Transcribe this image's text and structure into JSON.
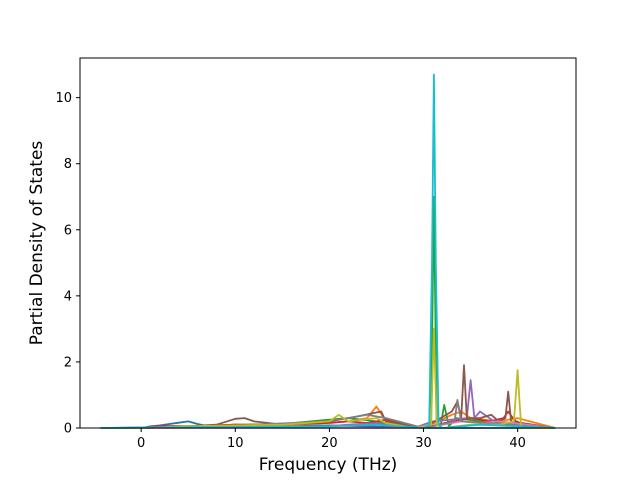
{
  "chart_data": {
    "type": "line",
    "title": "",
    "xlabel": "Frequency (THz)",
    "ylabel": "Partial Density of States",
    "xlim": [
      -6.5,
      46.2
    ],
    "ylim": [
      0,
      11.2
    ],
    "xticks": [
      0,
      10,
      20,
      30,
      40
    ],
    "yticks": [
      0,
      2,
      4,
      6,
      8,
      10
    ],
    "grid": false,
    "legend": "none",
    "series": [
      {
        "color": "#1f77b4",
        "x": [
          -4.3,
          0,
          1,
          2,
          3,
          4,
          5,
          6,
          7,
          8,
          10,
          12,
          15,
          20,
          24,
          30,
          44
        ],
        "y": [
          0,
          0,
          0.05,
          0.08,
          0.12,
          0.16,
          0.2,
          0.12,
          0.06,
          0.05,
          0.08,
          0.1,
          0.06,
          0.08,
          0.05,
          0,
          0
        ]
      },
      {
        "color": "#ff7f0e",
        "x": [
          -4.3,
          0,
          2,
          4,
          6,
          10,
          14,
          18,
          22,
          24,
          25,
          26,
          30,
          33,
          34,
          35,
          38,
          40,
          44
        ],
        "y": [
          0,
          0,
          0.04,
          0.06,
          0.05,
          0.1,
          0.08,
          0.12,
          0.2,
          0.3,
          0.65,
          0.2,
          0,
          0.4,
          0.5,
          0.3,
          0.2,
          0.3,
          0
        ]
      },
      {
        "color": "#2ca02c",
        "x": [
          -4.3,
          0,
          6,
          10,
          15,
          20,
          22,
          25,
          29,
          30.8,
          31.1,
          31.4,
          31.8,
          32.2,
          32.7,
          33.5,
          36,
          39.5,
          40,
          40.5,
          44
        ],
        "y": [
          0,
          0,
          0.05,
          0.1,
          0.12,
          0.25,
          0.3,
          0.2,
          0,
          0.05,
          7.0,
          0.1,
          0.05,
          0.7,
          0.05,
          0.3,
          0.2,
          0.1,
          0.2,
          0.05,
          0
        ]
      },
      {
        "color": "#d62728",
        "x": [
          -4.3,
          0,
          2,
          5,
          8,
          10,
          13,
          16,
          20,
          22,
          24,
          26,
          30,
          33,
          35,
          37,
          38.5,
          39,
          39.5,
          40.5,
          44
        ],
        "y": [
          0,
          0,
          0.06,
          0.05,
          0.08,
          0.1,
          0.08,
          0.12,
          0.15,
          0.2,
          0.15,
          0.25,
          0,
          0.2,
          0.3,
          0.2,
          0.3,
          0.5,
          0.3,
          0,
          0
        ]
      },
      {
        "color": "#9467bd",
        "x": [
          -4.3,
          20,
          22,
          25,
          29,
          31,
          34.6,
          35,
          35.4,
          36,
          37.5,
          44
        ],
        "y": [
          0,
          0.05,
          0.1,
          0.15,
          0,
          0.2,
          0.3,
          1.45,
          0.3,
          0.5,
          0.2,
          0
        ]
      },
      {
        "color": "#8c564b",
        "x": [
          -4.3,
          0,
          5,
          8,
          10,
          11,
          12,
          15,
          20,
          23,
          25.5,
          26,
          30,
          33,
          33.6,
          34,
          34.3,
          34.6,
          36,
          37.2,
          38,
          38.7,
          39,
          39.3,
          44
        ],
        "y": [
          0,
          0,
          0.05,
          0.1,
          0.28,
          0.3,
          0.2,
          0.1,
          0.2,
          0.35,
          0.5,
          0.2,
          0,
          0.5,
          0.8,
          0.3,
          1.9,
          0.3,
          0.3,
          0.4,
          0.2,
          0.3,
          1.1,
          0.2,
          0
        ]
      },
      {
        "color": "#e377c2",
        "x": [
          -4.3,
          30,
          32,
          34,
          36,
          38,
          44
        ],
        "y": [
          0,
          0,
          0.1,
          0.2,
          0.15,
          0.2,
          0
        ]
      },
      {
        "color": "#7f7f7f",
        "x": [
          -4.3,
          10,
          12,
          16,
          20,
          22,
          24,
          26,
          30,
          33.3,
          33.6,
          34,
          44
        ],
        "y": [
          0,
          0.05,
          0.1,
          0.15,
          0.2,
          0.3,
          0.4,
          0.3,
          0,
          0.2,
          0.85,
          0.2,
          0
        ]
      },
      {
        "color": "#bcbd22",
        "x": [
          -4.3,
          0,
          5,
          10,
          15,
          20,
          21,
          22,
          25,
          26,
          29,
          30.8,
          31.1,
          31.4,
          32,
          35,
          38,
          39.6,
          40,
          40.2,
          40.4,
          44
        ],
        "y": [
          0,
          0,
          0.05,
          0.08,
          0.1,
          0.2,
          0.4,
          0.2,
          0.3,
          0.15,
          0,
          0.1,
          3.0,
          0.1,
          0,
          0.1,
          0.1,
          0.2,
          1.75,
          0.8,
          0,
          0
        ]
      },
      {
        "color": "#17becf",
        "x": [
          -4.3,
          20,
          25,
          30,
          30.6,
          30.9,
          31.1,
          31.3,
          31.6,
          32,
          36,
          40,
          44
        ],
        "y": [
          0,
          0.05,
          0.1,
          0,
          0.1,
          5.0,
          10.7,
          5.0,
          0.1,
          0,
          0.1,
          0.05,
          0
        ]
      }
    ]
  }
}
